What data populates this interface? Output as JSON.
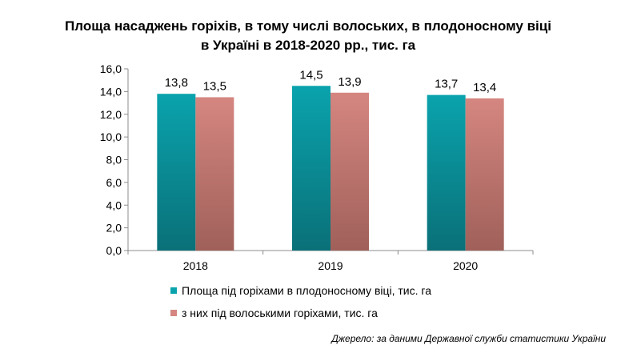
{
  "chart_data": {
    "type": "bar",
    "title_lines": [
      "Площа насаджень горіхів, в тому числі волоських, в плодоносному віці",
      "в Україні в 2018-2020 рр., тис. га"
    ],
    "categories": [
      "2018",
      "2019",
      "2020"
    ],
    "series": [
      {
        "name": "Площа  під горіхами в плодоносному  віці, тис. га",
        "values": [
          13.8,
          14.5,
          13.7
        ],
        "labels": [
          "13,8",
          "14,5",
          "13,7"
        ],
        "color_top": "#0aa3ad",
        "color_bottom": "#0a7078"
      },
      {
        "name": "з них під волоськими горіхами, тис. га",
        "values": [
          13.5,
          13.9,
          13.4
        ],
        "labels": [
          "13,5",
          "13,9",
          "13,4"
        ],
        "color_top": "#d58680",
        "color_bottom": "#a0605a"
      }
    ],
    "y_ticks": [
      "0,0",
      "2,0",
      "4,0",
      "6,0",
      "8,0",
      "10,0",
      "12,0",
      "14,0",
      "16,0"
    ],
    "ylim": [
      0,
      16
    ],
    "grid": false,
    "legend_position": "bottom-center",
    "source": "Джерело: за даними Державної служби статистики України"
  }
}
